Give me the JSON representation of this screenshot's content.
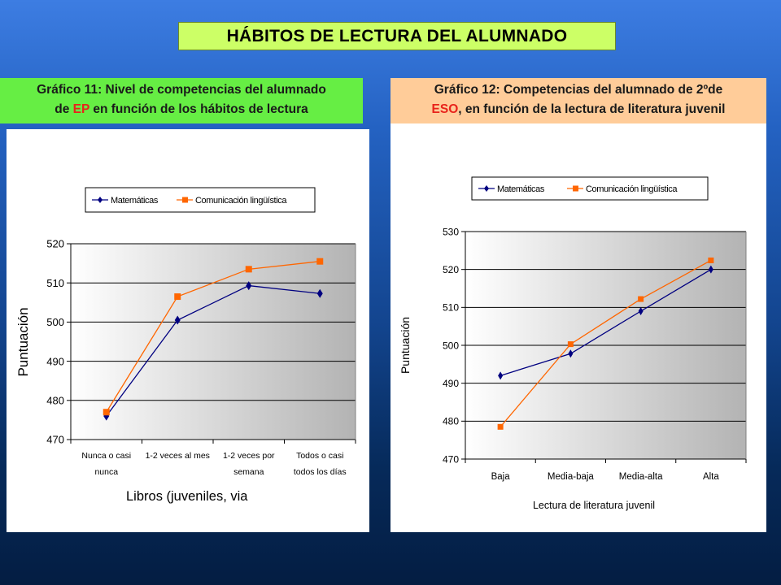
{
  "page_title": "HÁBITOS DE LECTURA DEL ALUMNADO",
  "caption1": {
    "line1": "Gráfico 11: Nivel de competencias del alumnado",
    "line2_pre": "de ",
    "line2_hl": "EP",
    "line2_post": " en función de los hábitos de lectura"
  },
  "caption2": {
    "line1": "Gráfico 12: Competencias del alumnado de 2ºde",
    "line2_hl": "ESO",
    "line2_post": ", en función de la lectura de literatura juvenil"
  },
  "colors": {
    "matematicas": "#000080",
    "comunicacion": "#ff6600",
    "title_bg": "#ccff66",
    "cap1_bg": "#66ee44",
    "cap2_bg": "#ffcc99",
    "highlight": "#e8231b"
  },
  "chart_data": [
    {
      "type": "line",
      "categories": [
        [
          "Nunca o casi",
          "nunca"
        ],
        [
          "1-2 veces al mes"
        ],
        [
          "1-2 veces por",
          "semana"
        ],
        [
          "Todos o casi",
          "todos los días"
        ]
      ],
      "series": [
        {
          "name": "Matemáticas",
          "values": [
            476,
            500.5,
            509.3,
            507.3
          ]
        },
        {
          "name": "Comunicación lingüística",
          "values": [
            477,
            506.5,
            513.5,
            515.5
          ]
        }
      ],
      "ylabel": "Puntuación",
      "xlabel": "Libros (juveniles, via",
      "ylim": [
        470,
        520
      ],
      "yticks": [
        470,
        480,
        490,
        500,
        510,
        520
      ],
      "legend": "top",
      "grid": true
    },
    {
      "type": "line",
      "categories": [
        [
          "Baja"
        ],
        [
          "Media-baja"
        ],
        [
          "Media-alta"
        ],
        [
          "Alta"
        ]
      ],
      "series": [
        {
          "name": "Matemáticas",
          "values": [
            492,
            497.8,
            509,
            520
          ]
        },
        {
          "name": "Comunicación lingüística",
          "values": [
            478.5,
            500.3,
            512.2,
            522.4
          ]
        }
      ],
      "ylabel": "Puntuación",
      "xlabel": "Lectura de literatura juvenil",
      "ylim": [
        470,
        530
      ],
      "yticks": [
        470,
        480,
        490,
        500,
        510,
        520,
        530
      ],
      "legend": "top",
      "grid": true
    }
  ]
}
